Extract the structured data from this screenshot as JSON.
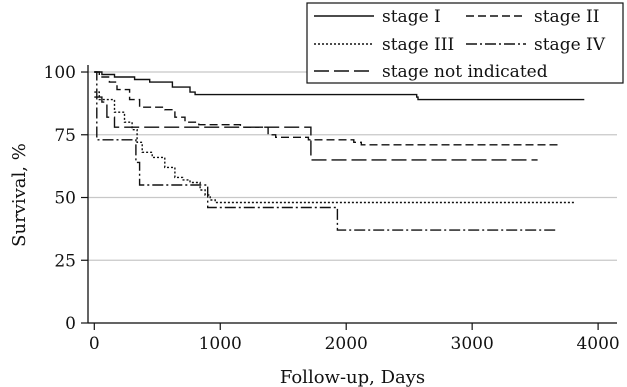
{
  "chart_data": {
    "type": "line",
    "step": true,
    "xlabel": "Follow-up, Days",
    "ylabel": "Survival, %",
    "xlim": [
      -50,
      4150
    ],
    "ylim": [
      0,
      102
    ],
    "xticks": [
      0,
      1000,
      2000,
      3000,
      4000
    ],
    "yticks": [
      0,
      25,
      50,
      75,
      100
    ],
    "grid": "horizontal",
    "legend_position": "top-right",
    "series": [
      {
        "name": "stage I",
        "line_style": "solid",
        "points": [
          [
            0,
            100
          ],
          [
            60,
            99
          ],
          [
            160,
            98
          ],
          [
            320,
            97
          ],
          [
            440,
            96
          ],
          [
            620,
            94
          ],
          [
            760,
            92
          ],
          [
            800,
            91
          ],
          [
            2560,
            90
          ],
          [
            2570,
            89
          ],
          [
            3890,
            89
          ]
        ]
      },
      {
        "name": "stage II",
        "line_style": "dashed",
        "points": [
          [
            0,
            100
          ],
          [
            40,
            98
          ],
          [
            120,
            96
          ],
          [
            180,
            93
          ],
          [
            280,
            89
          ],
          [
            360,
            86
          ],
          [
            560,
            85
          ],
          [
            640,
            82
          ],
          [
            720,
            80
          ],
          [
            830,
            79
          ],
          [
            1160,
            78
          ],
          [
            1380,
            75
          ],
          [
            1440,
            74
          ],
          [
            1700,
            73
          ],
          [
            2060,
            72
          ],
          [
            2120,
            71
          ],
          [
            3700,
            71
          ]
        ]
      },
      {
        "name": "stage III",
        "line_style": "dotted",
        "points": [
          [
            0,
            92
          ],
          [
            40,
            89
          ],
          [
            160,
            84
          ],
          [
            240,
            80
          ],
          [
            300,
            77
          ],
          [
            340,
            72
          ],
          [
            380,
            68
          ],
          [
            460,
            66
          ],
          [
            560,
            62
          ],
          [
            640,
            58
          ],
          [
            700,
            57
          ],
          [
            760,
            56
          ],
          [
            840,
            53
          ],
          [
            880,
            51
          ],
          [
            920,
            49
          ],
          [
            960,
            48
          ],
          [
            3820,
            48
          ]
        ]
      },
      {
        "name": "stage IV",
        "line_style": "dashdot",
        "points": [
          [
            0,
            100
          ],
          [
            20,
            73
          ],
          [
            300,
            73
          ],
          [
            330,
            64
          ],
          [
            360,
            55
          ],
          [
            870,
            55
          ],
          [
            900,
            46
          ],
          [
            1910,
            46
          ],
          [
            1930,
            37
          ],
          [
            3660,
            37
          ]
        ]
      },
      {
        "name": "stage not indicated",
        "line_style": "longdash",
        "points": [
          [
            0,
            90
          ],
          [
            60,
            88
          ],
          [
            100,
            82
          ],
          [
            160,
            78
          ],
          [
            1700,
            78
          ],
          [
            1720,
            65
          ],
          [
            3520,
            65
          ]
        ]
      }
    ]
  }
}
